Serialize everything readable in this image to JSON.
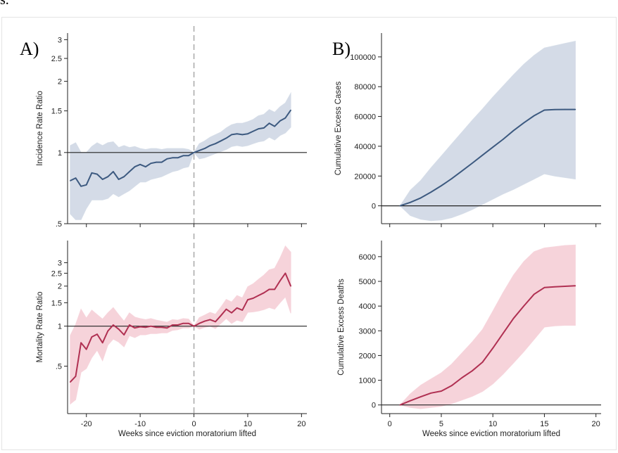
{
  "header_fragment": "s.",
  "chart_data": [
    {
      "id": "irr",
      "type": "line",
      "panel_label": "A)",
      "ylabel": "Incidence Rate Ratio",
      "xlabel": "",
      "yscale": "log",
      "xlim": [
        -23.5,
        21
      ],
      "ylim": [
        0.5,
        3.2
      ],
      "xticks": [
        -20,
        -10,
        0,
        10,
        20
      ],
      "xtick_labels": [
        "",
        "",
        "",
        "",
        ""
      ],
      "yticks": [
        0.5,
        1,
        1.5,
        2,
        2.5,
        3
      ],
      "ytick_labels": [
        ".5",
        "1",
        "1.5",
        "2",
        "2.5",
        "3"
      ],
      "reference_y": 1,
      "reference_x": 0,
      "color": "#3d5a80",
      "band_color": "#d4dbe7",
      "x": [
        -23,
        -22,
        -21,
        -20,
        -19,
        -18,
        -17,
        -16,
        -15,
        -14,
        -13,
        -12,
        -11,
        -10,
        -9,
        -8,
        -7,
        -6,
        -5,
        -4,
        -3,
        -2,
        -1,
        0,
        1,
        2,
        3,
        4,
        5,
        6,
        7,
        8,
        9,
        10,
        11,
        12,
        13,
        14,
        15,
        16,
        17,
        18
      ],
      "y": [
        0.76,
        0.78,
        0.72,
        0.73,
        0.82,
        0.81,
        0.77,
        0.79,
        0.83,
        0.77,
        0.79,
        0.83,
        0.87,
        0.89,
        0.87,
        0.9,
        0.91,
        0.91,
        0.94,
        0.95,
        0.95,
        0.97,
        0.97,
        1.0,
        1.02,
        1.04,
        1.07,
        1.09,
        1.12,
        1.15,
        1.19,
        1.2,
        1.19,
        1.2,
        1.23,
        1.26,
        1.27,
        1.33,
        1.29,
        1.36,
        1.4,
        1.51
      ],
      "lower": [
        0.55,
        0.52,
        0.52,
        0.58,
        0.63,
        0.63,
        0.63,
        0.64,
        0.67,
        0.65,
        0.67,
        0.69,
        0.72,
        0.75,
        0.75,
        0.77,
        0.78,
        0.79,
        0.81,
        0.83,
        0.84,
        0.86,
        0.87,
        1.0,
        0.94,
        0.95,
        0.97,
        0.99,
        1.01,
        1.03,
        1.06,
        1.07,
        1.06,
        1.07,
        1.09,
        1.11,
        1.12,
        1.16,
        1.13,
        1.18,
        1.21,
        1.28
      ],
      "upper": [
        1.07,
        1.1,
        1.0,
        1.0,
        1.06,
        1.1,
        1.07,
        1.1,
        1.11,
        1.05,
        1.07,
        1.05,
        1.06,
        1.04,
        1.03,
        1.04,
        1.04,
        1.03,
        1.04,
        1.04,
        1.04,
        1.04,
        1.03,
        1.0,
        1.09,
        1.12,
        1.16,
        1.19,
        1.22,
        1.27,
        1.31,
        1.33,
        1.33,
        1.35,
        1.38,
        1.43,
        1.45,
        1.52,
        1.48,
        1.56,
        1.62,
        1.78
      ]
    },
    {
      "id": "cum_cases",
      "type": "line",
      "panel_label": "B)",
      "ylabel": "Cumulative Excess Cases",
      "xlabel": "",
      "xlim": [
        -0.8,
        20.5
      ],
      "ylim": [
        -12000,
        116000
      ],
      "xticks": [
        0,
        5,
        10,
        15,
        20
      ],
      "xtick_labels": [
        "",
        "",
        "",
        "",
        ""
      ],
      "yticks": [
        0,
        20000,
        40000,
        60000,
        80000,
        100000
      ],
      "ytick_labels": [
        "0",
        "20000",
        "40000",
        "60000",
        "80000",
        "100000"
      ],
      "reference_y": 0,
      "color": "#3d5a80",
      "band_color": "#d4dbe7",
      "x": [
        1,
        2,
        3,
        4,
        5,
        6,
        7,
        8,
        9,
        10,
        11,
        12,
        13,
        14,
        15,
        16,
        17,
        18
      ],
      "y": [
        0,
        2300,
        5300,
        9200,
        13500,
        18200,
        23400,
        28600,
        34000,
        39400,
        44700,
        50500,
        55700,
        60500,
        64300,
        64600,
        64700,
        64700
      ],
      "lower": [
        0,
        -6500,
        -9000,
        -10000,
        -9500,
        -8000,
        -5500,
        -2500,
        1000,
        4500,
        8000,
        11000,
        14500,
        18000,
        21500,
        20000,
        19000,
        18000
      ],
      "upper": [
        0,
        10500,
        17000,
        25500,
        33500,
        41500,
        49500,
        57500,
        65000,
        73000,
        80500,
        88000,
        95000,
        101000,
        106000,
        107500,
        109000,
        110500
      ]
    },
    {
      "id": "mrr",
      "type": "line",
      "ylabel": "Mortality Rate Ratio",
      "xlabel": "Weeks since eviction moratorium lifted",
      "yscale": "log",
      "xlim": [
        -23.5,
        21
      ],
      "ylim": [
        0.22,
        4.4
      ],
      "xticks": [
        -20,
        -10,
        0,
        10,
        20
      ],
      "xtick_labels": [
        "-20",
        "-10",
        "0",
        "10",
        "20"
      ],
      "yticks": [
        0.5,
        1,
        1.5,
        2,
        2.5,
        3
      ],
      "ytick_labels": [
        ".5",
        "1",
        "1.5",
        "2",
        "2.5",
        "3"
      ],
      "reference_y": 1,
      "reference_x": 0,
      "color": "#b03052",
      "band_color": "#f6d3da",
      "x": [
        -23,
        -22,
        -21,
        -20,
        -19,
        -18,
        -17,
        -16,
        -15,
        -14,
        -13,
        -12,
        -11,
        -10,
        -9,
        -8,
        -7,
        -6,
        -5,
        -4,
        -3,
        -2,
        -1,
        0,
        1,
        2,
        3,
        4,
        5,
        6,
        7,
        8,
        9,
        10,
        11,
        12,
        13,
        14,
        15,
        16,
        17,
        18
      ],
      "y": [
        0.38,
        0.42,
        0.75,
        0.67,
        0.83,
        0.87,
        0.75,
        0.92,
        1.02,
        0.95,
        0.86,
        1.02,
        0.97,
        0.99,
        0.98,
        1.0,
        0.98,
        0.98,
        0.97,
        1.02,
        1.02,
        1.05,
        1.05,
        1.0,
        1.05,
        1.09,
        1.12,
        1.08,
        1.2,
        1.34,
        1.26,
        1.37,
        1.32,
        1.58,
        1.62,
        1.7,
        1.78,
        1.89,
        1.89,
        2.19,
        2.5,
        2.0
      ],
      "lower": [
        0.26,
        0.28,
        0.45,
        0.48,
        0.58,
        0.66,
        0.55,
        0.72,
        0.8,
        0.76,
        0.7,
        0.85,
        0.82,
        0.86,
        0.86,
        0.88,
        0.88,
        0.89,
        0.89,
        0.93,
        0.94,
        0.97,
        0.97,
        1.0,
        0.95,
        0.98,
        1.0,
        0.96,
        1.05,
        1.14,
        1.05,
        1.11,
        1.08,
        1.27,
        1.28,
        1.3,
        1.33,
        1.38,
        1.34,
        1.5,
        1.66,
        1.25
      ],
      "upper": [
        0.85,
        1.03,
        1.34,
        1.15,
        1.32,
        1.22,
        1.13,
        1.26,
        1.38,
        1.22,
        1.09,
        1.26,
        1.17,
        1.14,
        1.12,
        1.14,
        1.11,
        1.09,
        1.07,
        1.12,
        1.11,
        1.14,
        1.13,
        1.0,
        1.16,
        1.21,
        1.27,
        1.23,
        1.39,
        1.59,
        1.52,
        1.7,
        1.63,
        1.98,
        2.08,
        2.25,
        2.42,
        2.65,
        2.72,
        3.25,
        4.0,
        3.6
      ]
    },
    {
      "id": "cum_deaths",
      "type": "line",
      "ylabel": "Cumulative Excess Deaths",
      "xlabel": "Weeks since eviction moratorium lifted",
      "xlim": [
        -0.8,
        20.5
      ],
      "ylim": [
        -350,
        6650
      ],
      "xticks": [
        0,
        5,
        10,
        15,
        20
      ],
      "xtick_labels": [
        "0",
        "5",
        "10",
        "15",
        "20"
      ],
      "yticks": [
        0,
        1000,
        2000,
        3000,
        4000,
        5000,
        6000
      ],
      "ytick_labels": [
        "0",
        "1000",
        "2000",
        "3000",
        "4000",
        "5000",
        "6000"
      ],
      "reference_y": 0,
      "color": "#b03052",
      "band_color": "#f6d3da",
      "x": [
        1,
        2,
        3,
        4,
        5,
        6,
        7,
        8,
        9,
        10,
        11,
        12,
        13,
        14,
        15,
        16,
        17,
        18
      ],
      "y": [
        0,
        170,
        330,
        480,
        560,
        780,
        1100,
        1380,
        1730,
        2300,
        2900,
        3500,
        4000,
        4480,
        4750,
        4780,
        4800,
        4820
      ],
      "lower": [
        0,
        -100,
        -150,
        -100,
        -50,
        50,
        200,
        350,
        550,
        850,
        1250,
        1700,
        2150,
        2650,
        3150,
        3200,
        3220,
        3220
      ],
      "upper": [
        0,
        450,
        800,
        1050,
        1300,
        1650,
        2100,
        2550,
        3050,
        3800,
        4550,
        5250,
        5800,
        6200,
        6350,
        6400,
        6450,
        6470
      ]
    }
  ]
}
